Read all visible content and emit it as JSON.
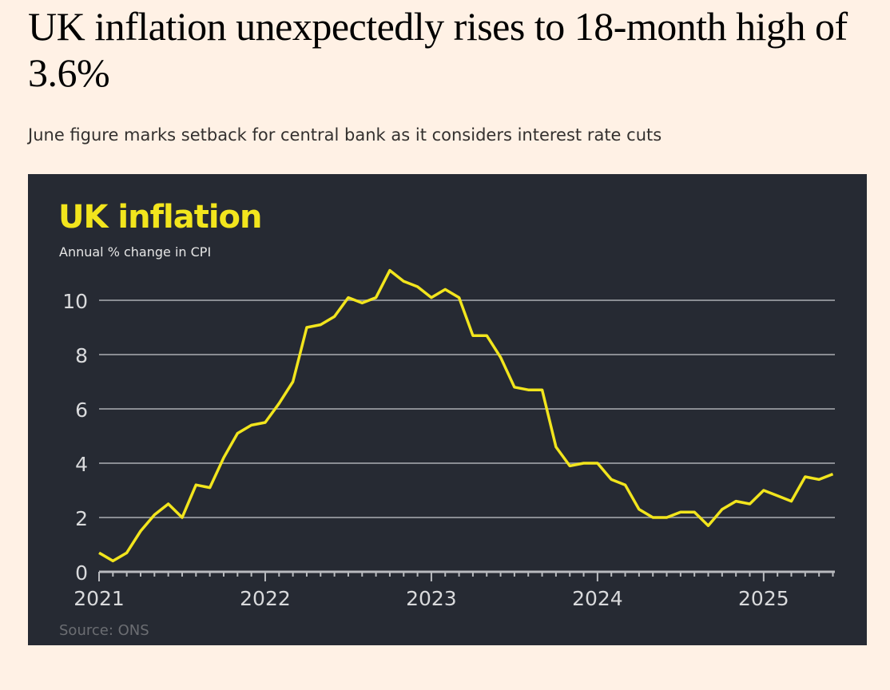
{
  "article": {
    "headline": "UK inflation unexpectedly rises to 18-month high of 3.6%",
    "standfirst": "June figure marks setback for central bank as it considers interest rate cuts"
  },
  "chart_data": {
    "type": "line",
    "title": "UK inflation",
    "subtitle": "Annual % change in CPI",
    "source": "Source: ONS",
    "xlabel": "",
    "ylabel": "",
    "ylim": [
      0,
      11
    ],
    "yticks": [
      "0",
      "2",
      "4",
      "6",
      "8",
      "10"
    ],
    "xticks": [
      "2021",
      "2022",
      "2023",
      "2024",
      "2025"
    ],
    "x_start": "2021-01",
    "x_end": "2025-06",
    "grid": true,
    "colors": {
      "line": "#f2e51d",
      "background": "#262a33",
      "grid": "#8a8d93",
      "text": "#d9dadc"
    },
    "series": [
      {
        "values": [
          0.7,
          0.4,
          0.7,
          1.5,
          2.1,
          2.5,
          2.0,
          3.2,
          3.1,
          4.2,
          5.1,
          5.4,
          5.5,
          6.2,
          7.0,
          9.0,
          9.1,
          9.4,
          10.1,
          9.9,
          10.1,
          11.1,
          10.7,
          10.5,
          10.1,
          10.4,
          10.1,
          8.7,
          8.7,
          7.9,
          6.8,
          6.7,
          6.7,
          4.6,
          3.9,
          4.0,
          4.0,
          3.4,
          3.2,
          2.3,
          2.0,
          2.0,
          2.2,
          2.2,
          1.7,
          2.3,
          2.6,
          2.5,
          3.0,
          2.8,
          2.6,
          3.5,
          3.4,
          3.6
        ]
      }
    ]
  }
}
